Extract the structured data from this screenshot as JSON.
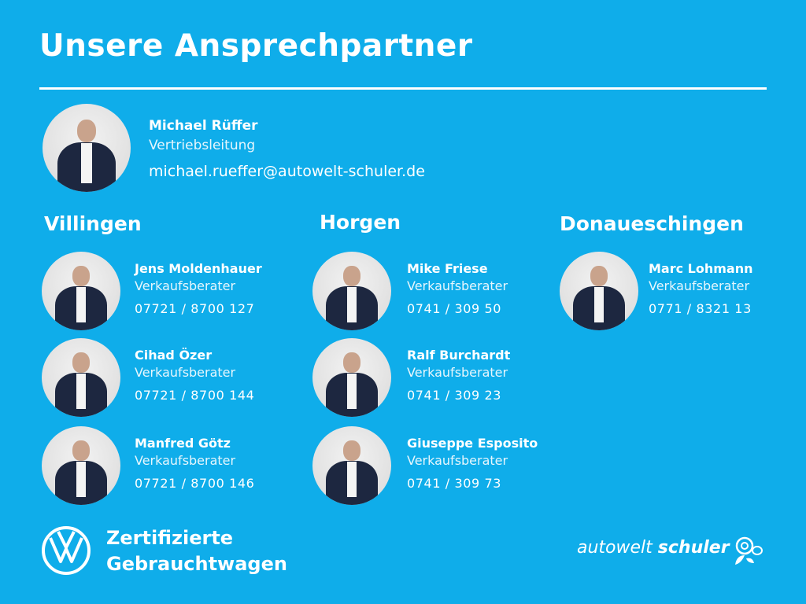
{
  "title": "Unsere Ansprechpartner",
  "lead": {
    "name": "Michael Rüffer",
    "role": "Vertriebsleitung",
    "email": "michael.rueffer@autowelt-schuler.de"
  },
  "locations": [
    {
      "name": "Villingen",
      "people": [
        {
          "name": "Jens Moldenhauer",
          "role": "Verkaufsberater",
          "phone": "07721 / 8700 127"
        },
        {
          "name": "Cihad Özer",
          "role": "Verkaufsberater",
          "phone": "07721 / 8700 144"
        },
        {
          "name": "Manfred Götz",
          "role": "Verkaufsberater",
          "phone": "07721 / 8700 146"
        }
      ]
    },
    {
      "name": "Horgen",
      "people": [
        {
          "name": "Mike Friese",
          "role": "Verkaufsberater",
          "phone": "0741 / 309 50"
        },
        {
          "name": "Ralf Burchardt",
          "role": "Verkaufsberater",
          "phone": "0741 / 309 23"
        },
        {
          "name": "Giuseppe Esposito",
          "role": "Verkaufsberater",
          "phone": "0741 / 309 73"
        }
      ]
    },
    {
      "name": "Donaueschingen",
      "people": [
        {
          "name": "Marc Lohmann",
          "role": "Verkaufsberater",
          "phone": "0771 / 8321 13"
        }
      ]
    }
  ],
  "footer": {
    "line1": "Zertifizierte",
    "line2": "Gebrauchtwagen",
    "brand_light": "autowelt",
    "brand_bold": "schuler"
  },
  "colors": {
    "background": "#0fadea",
    "text": "#ffffff"
  }
}
